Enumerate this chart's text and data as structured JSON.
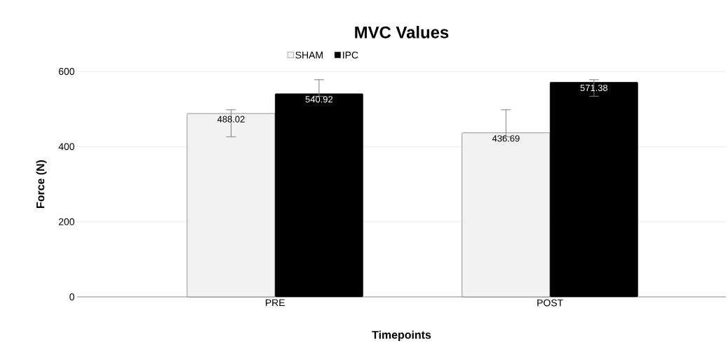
{
  "chart_data": {
    "type": "bar",
    "title": "MVC Values",
    "xlabel": "Timepoints",
    "ylabel": "Force (N)",
    "categories": [
      "PRE",
      "POST"
    ],
    "series": [
      {
        "name": "SHAM",
        "color": "#f2f2f2",
        "values": [
          488.02,
          436.69
        ],
        "errors": [
          [
            426,
            498
          ],
          [
            426,
            498
          ]
        ]
      },
      {
        "name": "IPC",
        "color": "#000000",
        "values": [
          540.92,
          571.38
        ],
        "errors": [
          [
            534,
            578
          ],
          [
            534,
            578
          ]
        ]
      }
    ],
    "ylim": [
      0,
      600
    ],
    "yticks": [
      0,
      200,
      400,
      600
    ],
    "grid": "y",
    "legend": "top",
    "data_labels": true
  }
}
